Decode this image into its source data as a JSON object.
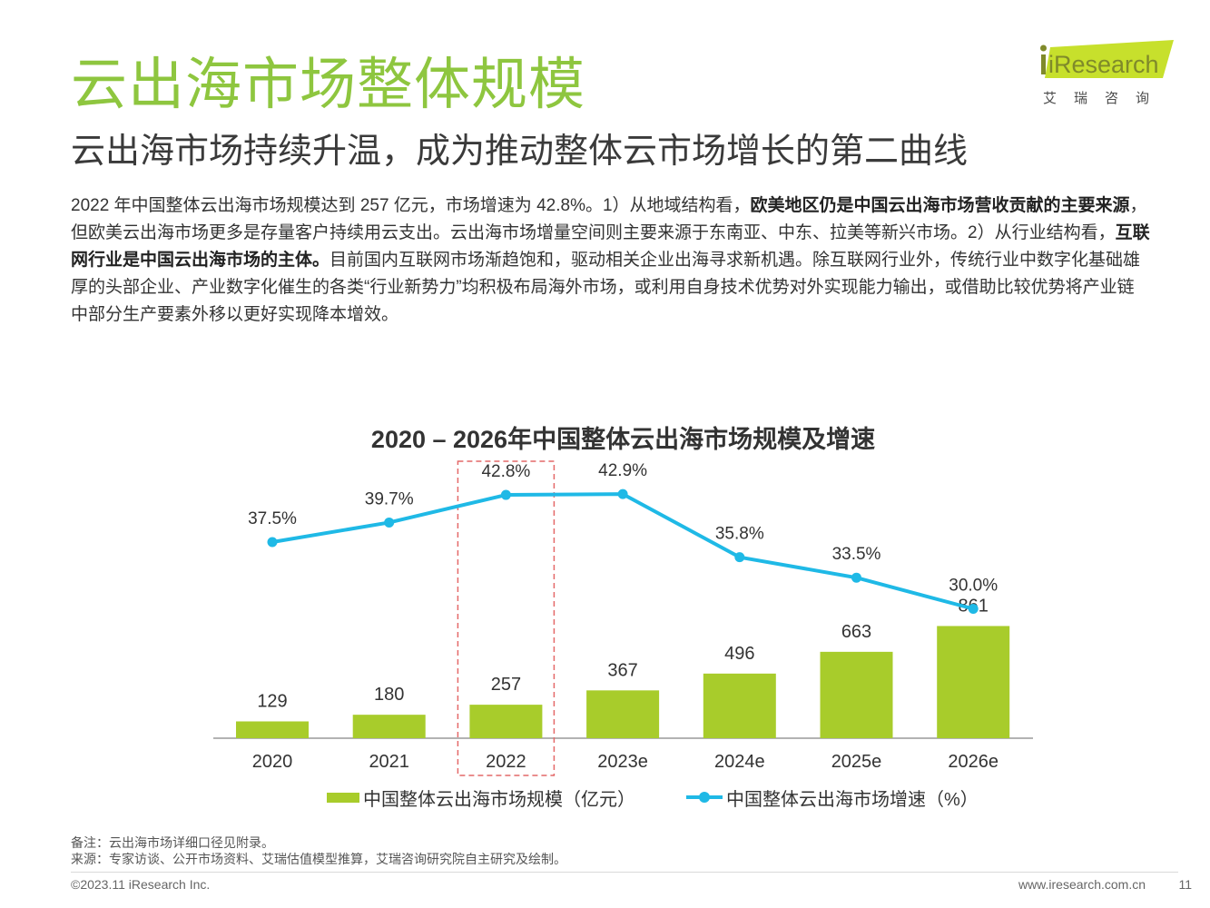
{
  "header": {
    "title": "云出海市场整体规模",
    "subtitle": "云出海市场持续升温，成为推动整体云市场增长的第二曲线"
  },
  "logo": {
    "text": "iResearch",
    "cn": "艾瑞咨询",
    "brand_color": "#c7e02c",
    "text_color": "#7f8a2a"
  },
  "body": {
    "p1": "2022 年中国整体云出海市场规模达到 257 亿元，市场增速为 42.8%。1）从地域结构看，",
    "b1": "欧美地区仍是中国云出海市场营收贡献的主要来源",
    "p2": "，但欧美云出海市场更多是存量客户持续用云支出。云出海市场增量空间则主要来源于东南亚、中东、拉美等新兴市场。2）从行业结构看，",
    "b2": "互联网行业是中国云出海市场的主体。",
    "p3": "目前国内互联网市场渐趋饱和，驱动相关企业出海寻求新机遇。除互联网行业外，传统行业中数字化基础雄厚的头部企业、产业数字化催生的各类“行业新势力”均积极布局海外市场，或利用自身技术优势对外实现能力输出，或借助比较优势将产业链中部分生产要素外移以更好实现降本增效。"
  },
  "chart_data": {
    "type": "bar+line",
    "title": "2020 – 2026年中国整体云出海市场规模及增速",
    "categories": [
      "2020",
      "2021",
      "2022",
      "2023e",
      "2024e",
      "2025e",
      "2026e"
    ],
    "series": [
      {
        "name": "中国整体云出海市场规模（亿元）",
        "type": "bar",
        "values": [
          129,
          180,
          257,
          367,
          496,
          663,
          861
        ],
        "labels": [
          "129",
          "180",
          "257",
          "367",
          "496",
          "663",
          "861"
        ],
        "color": "#a8cc2b"
      },
      {
        "name": "中国整体云出海市场增速（%）",
        "type": "line",
        "values": [
          37.5,
          39.7,
          42.8,
          42.9,
          35.8,
          33.5,
          30.0
        ],
        "labels": [
          "37.5%",
          "39.7%",
          "42.8%",
          "42.9%",
          "35.8%",
          "33.5%",
          "30.0%"
        ],
        "color": "#1fb9e6"
      }
    ],
    "highlight_category": "2022",
    "highlight_color": "#e46969",
    "legend_position": "bottom",
    "grid": false
  },
  "footer": {
    "note": "备注：云出海市场详细口径见附录。",
    "source": "来源：专家访谈、公开市场资料、艾瑞估值模型推算，艾瑞咨询研究院自主研究及绘制。",
    "copyright": "©2023.11 iResearch Inc.",
    "website": "www.iresearch.com.cn",
    "page": "11"
  }
}
